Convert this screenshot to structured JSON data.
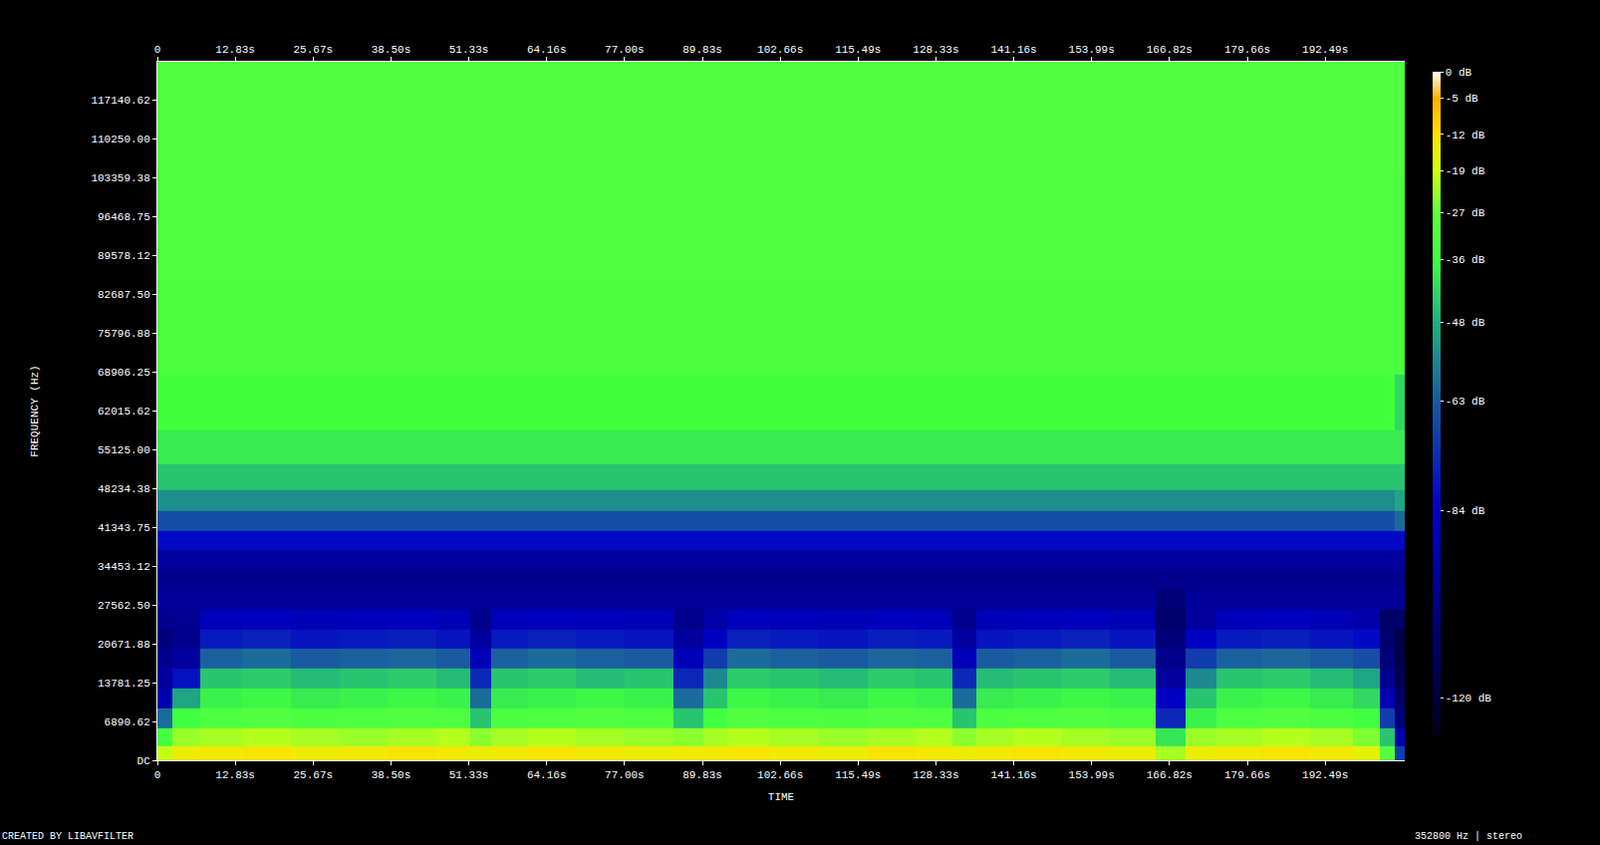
{
  "chart_data": {
    "type": "heatmap",
    "x_label": "TIME",
    "y_label": "FREQUENCY (Hz)",
    "annotations": [
      "CREATED BY LIBAVFILTER",
      "352800 Hz | stereo"
    ],
    "grid": false,
    "xlim": [
      0,
      205.6
    ],
    "xticks": [
      0,
      {
        "value": 12.83,
        "label": "12.83s"
      },
      {
        "value": 25.67,
        "label": "25.67s"
      },
      {
        "value": 38.5,
        "label": "38.50s"
      },
      {
        "value": 51.33,
        "label": "51.33s"
      },
      {
        "value": 64.16,
        "label": "64.16s"
      },
      {
        "value": 77.0,
        "label": "77.00s"
      },
      {
        "value": 89.83,
        "label": "89.83s"
      },
      {
        "value": 102.66,
        "label": "102.66s"
      },
      {
        "value": 115.49,
        "label": "115.49s"
      },
      {
        "value": 128.33,
        "label": "128.33s"
      },
      {
        "value": 141.16,
        "label": "141.16s"
      },
      {
        "value": 153.99,
        "label": "153.99s"
      },
      {
        "value": 166.82,
        "label": "166.82s"
      },
      {
        "value": 179.66,
        "label": "179.66s"
      },
      {
        "value": 192.49,
        "label": "192.49s"
      }
    ],
    "ylim": [
      0,
      123900
    ],
    "yticks": [
      {
        "value": 0,
        "label": "DC"
      },
      6890.62,
      13781.25,
      20671.88,
      {
        "value": 27562.5,
        "label": "27562.50"
      },
      34453.12,
      41343.75,
      48234.38,
      {
        "value": 55125,
        "label": "55125.00"
      },
      62015.62,
      68906.25,
      75796.88,
      {
        "value": 82687.5,
        "label": "82687.50"
      },
      89578.12,
      96468.75,
      103359.38,
      {
        "value": 110250,
        "label": "110250.00"
      },
      117140.62
    ],
    "x": [
      1,
      4,
      10,
      18,
      26,
      34,
      42,
      50,
      53,
      57,
      65,
      73,
      81,
      89,
      91,
      97,
      105,
      113,
      121,
      129,
      133,
      137,
      145,
      153,
      161,
      168,
      171,
      178,
      186,
      194,
      200,
      203,
      205
    ],
    "y": [
      1000,
      4000,
      7500,
      11000,
      14500,
      18000,
      21500,
      25000,
      28500,
      32000,
      35500,
      39000,
      42500,
      46000,
      50000,
      55000,
      62000,
      75000,
      95000,
      115000
    ],
    "cells": [
      [
        -20,
        -15,
        -14,
        -13,
        -15,
        -14,
        -13,
        -14,
        -15,
        -14,
        -13,
        -14,
        -15,
        -14,
        -14,
        -13,
        -14,
        -15,
        -13,
        -14,
        -15,
        -14,
        -13,
        -14,
        -15,
        -22,
        -15,
        -14,
        -13,
        -14,
        -16,
        -30,
        -70
      ],
      [
        -35,
        -23,
        -22,
        -21,
        -22,
        -23,
        -22,
        -21,
        -24,
        -22,
        -21,
        -22,
        -23,
        -24,
        -22,
        -21,
        -22,
        -23,
        -22,
        -21,
        -24,
        -22,
        -21,
        -22,
        -23,
        -40,
        -23,
        -22,
        -21,
        -22,
        -25,
        -45,
        -90
      ],
      [
        -60,
        -36,
        -32,
        -31,
        -33,
        -32,
        -31,
        -32,
        -45,
        -33,
        -32,
        -31,
        -32,
        -45,
        -36,
        -31,
        -32,
        -33,
        -31,
        -32,
        -45,
        -33,
        -32,
        -31,
        -33,
        -75,
        -38,
        -32,
        -31,
        -33,
        -36,
        -70,
        -105
      ],
      [
        -90,
        -50,
        -38,
        -37,
        -39,
        -38,
        -37,
        -38,
        -60,
        -39,
        -38,
        -37,
        -38,
        -60,
        -45,
        -37,
        -38,
        -39,
        -37,
        -38,
        -60,
        -39,
        -38,
        -37,
        -38,
        -85,
        -45,
        -38,
        -37,
        -39,
        -42,
        -90,
        -110
      ],
      [
        -95,
        -80,
        -45,
        -44,
        -46,
        -45,
        -44,
        -46,
        -75,
        -45,
        -44,
        -46,
        -45,
        -75,
        -55,
        -44,
        -45,
        -46,
        -44,
        -45,
        -75,
        -46,
        -45,
        -44,
        -46,
        -95,
        -55,
        -45,
        -44,
        -46,
        -50,
        -100,
        -115
      ],
      [
        -100,
        -95,
        -62,
        -60,
        -63,
        -62,
        -61,
        -63,
        -88,
        -62,
        -60,
        -62,
        -63,
        -88,
        -70,
        -60,
        -62,
        -63,
        -61,
        -62,
        -88,
        -63,
        -62,
        -60,
        -63,
        -100,
        -70,
        -62,
        -61,
        -63,
        -66,
        -105,
        -118
      ],
      [
        -105,
        -100,
        -78,
        -76,
        -79,
        -78,
        -77,
        -79,
        -95,
        -78,
        -76,
        -78,
        -79,
        -95,
        -85,
        -76,
        -78,
        -79,
        -77,
        -78,
        -95,
        -79,
        -78,
        -76,
        -79,
        -105,
        -85,
        -78,
        -77,
        -79,
        -82,
        -108,
        -118
      ],
      [
        -100,
        -98,
        -88,
        -87,
        -89,
        -88,
        -87,
        -89,
        -100,
        -88,
        -87,
        -88,
        -89,
        -100,
        -93,
        -87,
        -88,
        -89,
        -87,
        -88,
        -100,
        -89,
        -88,
        -87,
        -89,
        -108,
        -95,
        -88,
        -87,
        -89,
        -92,
        -110,
        -110
      ],
      [
        -96,
        -96,
        -96,
        -96,
        -96,
        -96,
        -96,
        -96,
        -96,
        -96,
        -96,
        -96,
        -96,
        -96,
        -96,
        -96,
        -96,
        -96,
        -96,
        -96,
        -96,
        -96,
        -96,
        -96,
        -96,
        -105,
        -96,
        -96,
        -96,
        -96,
        -96,
        -96,
        -96
      ],
      [
        -100,
        -100,
        -100,
        -100,
        -100,
        -100,
        -100,
        -100,
        -100,
        -100,
        -100,
        -100,
        -100,
        -100,
        -100,
        -100,
        -100,
        -100,
        -100,
        -100,
        -100,
        -100,
        -100,
        -100,
        -100,
        -100,
        -100,
        -100,
        -100,
        -100,
        -100,
        -100,
        -100
      ],
      [
        -95,
        -95,
        -95,
        -95,
        -95,
        -95,
        -95,
        -95,
        -95,
        -95,
        -95,
        -95,
        -95,
        -95,
        -95,
        -95,
        -95,
        -95,
        -95,
        -95,
        -95,
        -95,
        -95,
        -95,
        -95,
        -95,
        -95,
        -95,
        -95,
        -95,
        -95,
        -95,
        -95
      ],
      [
        -82,
        -82,
        -82,
        -82,
        -82,
        -82,
        -82,
        -82,
        -82,
        -82,
        -82,
        -82,
        -82,
        -82,
        -82,
        -82,
        -82,
        -82,
        -82,
        -82,
        -82,
        -82,
        -82,
        -82,
        -82,
        -82,
        -82,
        -82,
        -82,
        -82,
        -82,
        -82,
        -82
      ],
      [
        -66,
        -66,
        -66,
        -66,
        -66,
        -66,
        -66,
        -66,
        -66,
        -66,
        -66,
        -66,
        -66,
        -66,
        -66,
        -66,
        -66,
        -66,
        -66,
        -66,
        -66,
        -66,
        -66,
        -66,
        -66,
        -66,
        -66,
        -66,
        -66,
        -66,
        -66,
        -66,
        -60
      ],
      [
        -54,
        -54,
        -54,
        -54,
        -54,
        -54,
        -54,
        -54,
        -54,
        -54,
        -54,
        -54,
        -54,
        -54,
        -54,
        -54,
        -54,
        -54,
        -54,
        -54,
        -54,
        -54,
        -54,
        -54,
        -54,
        -54,
        -54,
        -54,
        -54,
        -54,
        -54,
        -54,
        -50
      ],
      [
        -45,
        -45,
        -45,
        -45,
        -45,
        -45,
        -45,
        -45,
        -45,
        -45,
        -45,
        -45,
        -45,
        -45,
        -45,
        -45,
        -45,
        -45,
        -45,
        -45,
        -45,
        -45,
        -45,
        -45,
        -45,
        -45,
        -45,
        -45,
        -45,
        -45,
        -45,
        -45,
        -45
      ],
      [
        -39,
        -39,
        -39,
        -39,
        -39,
        -39,
        -39,
        -39,
        -39,
        -39,
        -39,
        -39,
        -39,
        -39,
        -39,
        -39,
        -39,
        -39,
        -39,
        -39,
        -39,
        -39,
        -39,
        -39,
        -39,
        -39,
        -39,
        -39,
        -39,
        -39,
        -39,
        -39,
        -39
      ],
      [
        -35,
        -35,
        -35,
        -35,
        -35,
        -35,
        -35,
        -35,
        -35,
        -35,
        -35,
        -35,
        -35,
        -35,
        -35,
        -35,
        -35,
        -35,
        -35,
        -35,
        -35,
        -35,
        -35,
        -35,
        -35,
        -35,
        -35,
        -35,
        -35,
        -35,
        -35,
        -35,
        -42
      ],
      [
        -33,
        -33,
        -33,
        -33,
        -33,
        -33,
        -33,
        -33,
        -33,
        -33,
        -33,
        -33,
        -33,
        -33,
        -33,
        -33,
        -33,
        -33,
        -33,
        -33,
        -33,
        -33,
        -33,
        -33,
        -33,
        -33,
        -33,
        -33,
        -33,
        -33,
        -33,
        -33,
        -33
      ],
      [
        -32,
        -32,
        -32,
        -32,
        -32,
        -32,
        -32,
        -32,
        -32,
        -32,
        -32,
        -32,
        -32,
        -32,
        -32,
        -32,
        -32,
        -32,
        -32,
        -32,
        -32,
        -32,
        -32,
        -32,
        -32,
        -32,
        -32,
        -32,
        -32,
        -32,
        -32,
        -32,
        -32
      ],
      [
        -31,
        -31,
        -31,
        -31,
        -31,
        -31,
        -31,
        -31,
        -31,
        -31,
        -31,
        -31,
        -31,
        -31,
        -31,
        -31,
        -31,
        -31,
        -31,
        -31,
        -31,
        -31,
        -31,
        -31,
        -31,
        -31,
        -31,
        -31,
        -31,
        -31,
        -31,
        -31,
        -31
      ]
    ],
    "colorbar": {
      "zlim": [
        -130,
        0
      ],
      "ticks": [
        {
          "value": 0,
          "label": "0 dB"
        },
        {
          "value": -5,
          "label": "-5 dB"
        },
        {
          "value": -12,
          "label": "-12 dB"
        },
        {
          "value": -19,
          "label": "-19 dB"
        },
        {
          "value": -27,
          "label": "-27 dB"
        },
        {
          "value": -36,
          "label": "-36 dB"
        },
        {
          "value": -48,
          "label": "-48 dB"
        },
        {
          "value": -63,
          "label": "-63 dB"
        },
        {
          "value": -84,
          "label": "-84 dB"
        },
        {
          "value": -120,
          "label": "-120 dB"
        }
      ]
    }
  }
}
